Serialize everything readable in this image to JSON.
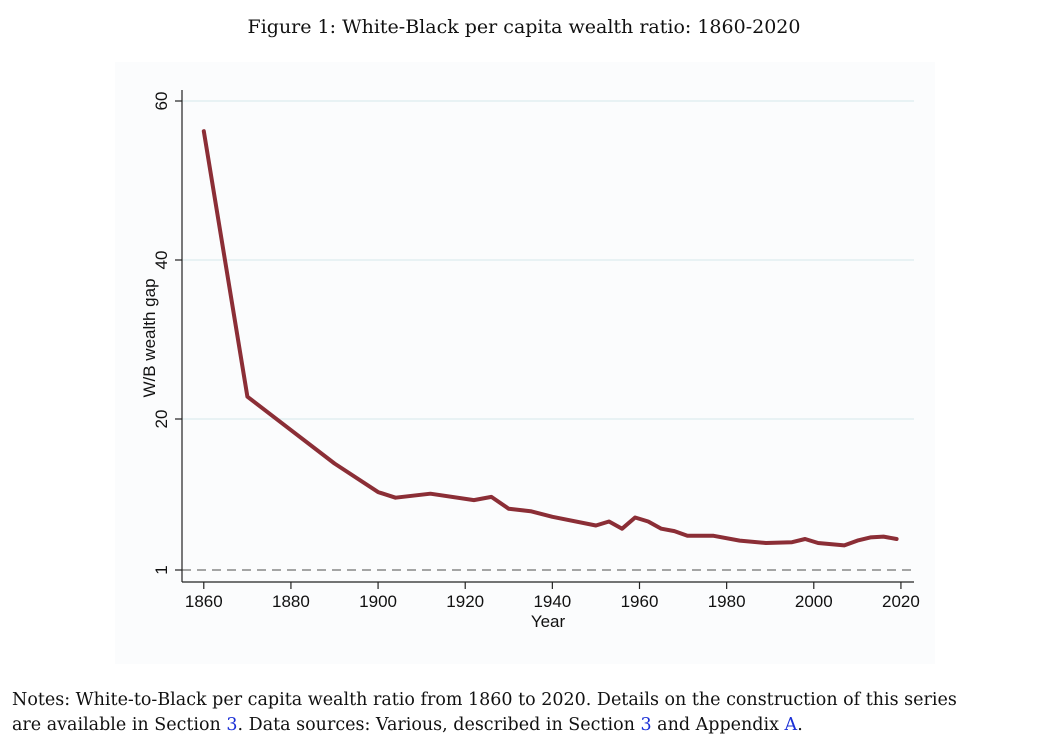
{
  "figure": {
    "caption": "Figure 1: White-Black per capita wealth ratio: 1860-2020"
  },
  "chart_data": {
    "type": "line",
    "xlabel": "Year",
    "ylabel": "W/B wealth gap",
    "xlim": [
      1855,
      2023
    ],
    "x_ticks": [
      1860,
      1880,
      1900,
      1920,
      1940,
      1960,
      1980,
      2000,
      2020
    ],
    "y_ticks": [
      1,
      20,
      40,
      60
    ],
    "y_tick_labels": [
      "1",
      "20",
      "40",
      "60"
    ],
    "grid": true,
    "reference_line": {
      "y": 1,
      "style": "dashed"
    },
    "series": [
      {
        "color": "#8b2e36",
        "points": [
          [
            1860,
            56.2
          ],
          [
            1870,
            22.8
          ],
          [
            1880,
            18.6
          ],
          [
            1890,
            14.4
          ],
          [
            1900,
            10.8
          ],
          [
            1904,
            10.1
          ],
          [
            1912,
            10.6
          ],
          [
            1922,
            9.8
          ],
          [
            1926,
            10.2
          ],
          [
            1930,
            8.7
          ],
          [
            1935,
            8.4
          ],
          [
            1940,
            7.7
          ],
          [
            1950,
            6.6
          ],
          [
            1953,
            7.1
          ],
          [
            1956,
            6.2
          ],
          [
            1959,
            7.6
          ],
          [
            1962,
            7.1
          ],
          [
            1965,
            6.2
          ],
          [
            1968,
            5.9
          ],
          [
            1971,
            5.3
          ],
          [
            1977,
            5.3
          ],
          [
            1983,
            4.7
          ],
          [
            1989,
            4.4
          ],
          [
            1995,
            4.5
          ],
          [
            1998,
            4.9
          ],
          [
            2001,
            4.4
          ],
          [
            2007,
            4.1
          ],
          [
            2010,
            4.7
          ],
          [
            2013,
            5.1
          ],
          [
            2016,
            5.2
          ],
          [
            2019,
            4.9
          ]
        ]
      }
    ]
  },
  "notes": {
    "line1": "Notes: White-to-Black per capita wealth ratio from 1860 to 2020. Details on the construction of this series",
    "line2_a": "are available in Section ",
    "ref_section_1": "3",
    "line2_b": ". Data sources: Various, described in Section ",
    "ref_section_2": "3",
    "line2_c": " and Appendix ",
    "ref_appendix": "A",
    "line2_d": "."
  }
}
